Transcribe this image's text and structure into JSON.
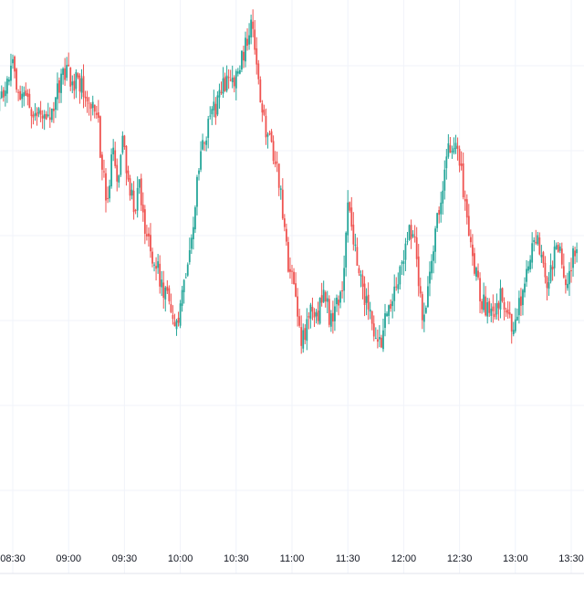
{
  "chart_data": {
    "type": "candlestick",
    "x_axis_labels": [
      "08:30",
      "09:00",
      "09:30",
      "10:00",
      "10:30",
      "11:00",
      "11:30",
      "12:00",
      "12:30",
      "13:00",
      "13:30"
    ],
    "y_range": [
      0,
      100
    ],
    "grid": true,
    "colors": {
      "up": "#26a69a",
      "down": "#ef5350",
      "grid": "#f0f3fa",
      "axis_text": "#131722",
      "axis_line": "#e0e3eb"
    },
    "segments": [
      {
        "from_time": "08:12",
        "to_time": "08:30",
        "levels": [
          82.0,
          84.0,
          81.0,
          85.0,
          89.0
        ]
      },
      {
        "from_time": "08:30",
        "to_time": "08:52",
        "levels": [
          89.0,
          85.0,
          83.0,
          80.0,
          82.0,
          78.0,
          81.0
        ]
      },
      {
        "from_time": "08:52",
        "to_time": "09:15",
        "levels": [
          81.0,
          88.0,
          87.0,
          86.0,
          83.0,
          81.0
        ]
      },
      {
        "from_time": "09:15",
        "to_time": "09:32",
        "levels": [
          81.0,
          71.0,
          62.0,
          73.0,
          66.0,
          75.0,
          68.0
        ]
      },
      {
        "from_time": "09:32",
        "to_time": "09:50",
        "levels": [
          68.0,
          63.0,
          66.0,
          58.0,
          55.0,
          52.0,
          48.0
        ]
      },
      {
        "from_time": "09:50",
        "to_time": "10:07",
        "levels": [
          48.0,
          45.0,
          38.0,
          43.0,
          53.0,
          60.0
        ]
      },
      {
        "from_time": "10:07",
        "to_time": "10:23",
        "levels": [
          60.0,
          70.0,
          76.0,
          80.0,
          82.0,
          85.0
        ]
      },
      {
        "from_time": "10:23",
        "to_time": "10:38",
        "levels": [
          85.0,
          88.0,
          86.0,
          89.0,
          93.0,
          99.0
        ]
      },
      {
        "from_time": "10:38",
        "to_time": "10:53",
        "levels": [
          99.0,
          88.0,
          80.0,
          76.0,
          72.0,
          68.0
        ]
      },
      {
        "from_time": "10:53",
        "to_time": "11:11",
        "levels": [
          68.0,
          57.0,
          50.0,
          45.0,
          38.0,
          40.0,
          44.0
        ]
      },
      {
        "from_time": "11:11",
        "to_time": "11:27",
        "levels": [
          44.0,
          43.0,
          46.0,
          41.0,
          44.0,
          48.0
        ]
      },
      {
        "from_time": "11:27",
        "to_time": "11:47",
        "levels": [
          48.0,
          63.0,
          56.0,
          49.0,
          44.0,
          40.0,
          36.0
        ]
      },
      {
        "from_time": "11:47",
        "to_time": "12:07",
        "levels": [
          36.0,
          42.0,
          47.0,
          52.0,
          60.0,
          54.0
        ]
      },
      {
        "from_time": "12:07",
        "to_time": "12:20",
        "levels": [
          54.0,
          40.0,
          50.0,
          58.0,
          64.0
        ]
      },
      {
        "from_time": "12:20",
        "to_time": "12:35",
        "levels": [
          64.0,
          74.0,
          74.0,
          68.0,
          58.0
        ]
      },
      {
        "from_time": "12:35",
        "to_time": "12:53",
        "levels": [
          58.0,
          50.0,
          45.0,
          42.0,
          44.0,
          46.0
        ]
      },
      {
        "from_time": "12:53",
        "to_time": "13:08",
        "levels": [
          46.0,
          42.0,
          40.0,
          44.0,
          48.0,
          53.0
        ]
      },
      {
        "from_time": "13:08",
        "to_time": "13:20",
        "levels": [
          53.0,
          57.0,
          54.0,
          49.0,
          52.0
        ]
      },
      {
        "from_time": "13:20",
        "to_time": "13:34",
        "levels": [
          52.0,
          56.0,
          52.0,
          48.0,
          54.0,
          56.0
        ]
      }
    ]
  }
}
